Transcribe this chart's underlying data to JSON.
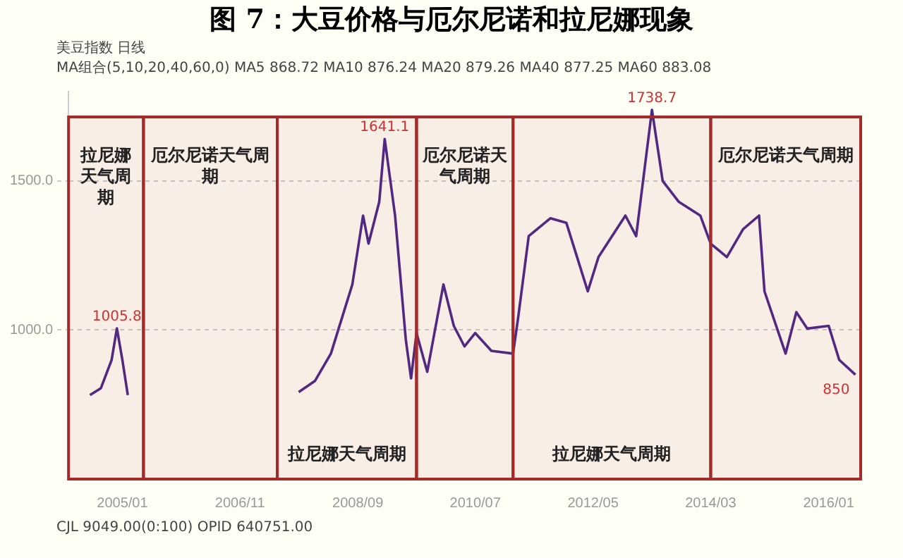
{
  "chart_data": {
    "type": "line",
    "title": "图 7：大豆价格与厄尔尼诺和拉尼娜现象",
    "series": [
      {
        "color": "#4b2a8a",
        "x": [
          "2004-07",
          "2004-09",
          "2004-11",
          "2004-12",
          "2005-01",
          "2005-02",
          "2005-03",
          "2007-10",
          "2008-01",
          "2008-04",
          "2008-08",
          "2008-10",
          "2008-11",
          "2009-01",
          "2009-02",
          "2009-04",
          "2009-06",
          "2009-07",
          "2009-08",
          "2009-10",
          "2010-01",
          "2010-03",
          "2010-05",
          "2010-07",
          "2010-10",
          "2011-02",
          "2011-03",
          "2011-05",
          "2011-09",
          "2011-12",
          "2012-04",
          "2012-06",
          "2012-11",
          "2013-01",
          "2013-04",
          "2013-06",
          "2013-09",
          "2014-01",
          "2014-03",
          "2014-06",
          "2014-09",
          "2014-12",
          "2015-01",
          "2015-05",
          "2015-07",
          "2015-09",
          "2016-01",
          "2016-03",
          "2016-06"
        ],
        "values": [
          782,
          805,
          900,
          1005.8,
          900,
          782,
          null,
          792,
          829,
          921,
          1153,
          1384,
          1290,
          1430,
          1641.1,
          1384,
          968,
          838,
          990,
          860,
          1153,
          1014,
          945,
          990,
          930,
          921,
          1037,
          1315,
          1375,
          1360,
          1130,
          1245,
          1384,
          1315,
          1738.7,
          1500,
          1430,
          1384,
          1290,
          1245,
          1338,
          1384,
          1130,
          921,
          1060,
          1005,
          1014,
          900,
          850
        ]
      }
    ],
    "xlim": [
      "2004-03",
      "2016-07"
    ],
    "xticks": [
      {
        "value": "2005-01",
        "label": "2005/01"
      },
      {
        "value": "2006-11",
        "label": "2006/11"
      },
      {
        "value": "2008-09",
        "label": "2008/09"
      },
      {
        "value": "2010-07",
        "label": "2010/07"
      },
      {
        "value": "2012-05",
        "label": "2012/05"
      },
      {
        "value": "2014-03",
        "label": "2014/03"
      },
      {
        "value": "2016-01",
        "label": "2016/01"
      }
    ],
    "ylim": [
      500,
      1800
    ],
    "yticks": [
      {
        "value": 1000,
        "label": "1000.0"
      },
      {
        "value": 1500,
        "label": "1500.0"
      }
    ],
    "grid": "y",
    "bands": [
      {
        "axis": "x",
        "from": "2004-03",
        "to": "2005-05",
        "label": "拉尼娜天气周期",
        "color": "#a52a2a"
      },
      {
        "axis": "x",
        "from": "2005-05",
        "to": "2007-06",
        "label": "厄尔尼诺天气周期",
        "color": "#a52a2a"
      },
      {
        "axis": "x",
        "from": "2007-06",
        "to": "2009-08",
        "label": "拉尼娜天气周期",
        "color": "#a52a2a"
      },
      {
        "axis": "x",
        "from": "2009-08",
        "to": "2011-02",
        "label": "厄尔尼诺天气周期",
        "color": "#a52a2a"
      },
      {
        "axis": "x",
        "from": "2011-02",
        "to": "2014-03",
        "label": "拉尼娜天气周期",
        "color": "#a52a2a"
      },
      {
        "axis": "x",
        "from": "2014-03",
        "to": "2016-07",
        "label": "厄尔尼诺天气周期",
        "color": "#a52a2a"
      }
    ],
    "annotations": [
      "美豆指数 日线",
      "MA组合(5,10,20,40,60,0)  MA5 868.72  MA10 876.24  MA20 879.26  MA40 877.25  MA60 883.08",
      {
        "text": "1005.8",
        "x": "2004-12",
        "y": 1005.8
      },
      {
        "text": "1641.1",
        "x": "2009-02",
        "y": 1641.1
      },
      {
        "text": "1738.7",
        "x": "2013-04",
        "y": 1738.7
      },
      {
        "text": "850",
        "x": "2016-06",
        "y": 850
      },
      "CJL 9049.00(0:100)   OPID 640751.00"
    ]
  }
}
